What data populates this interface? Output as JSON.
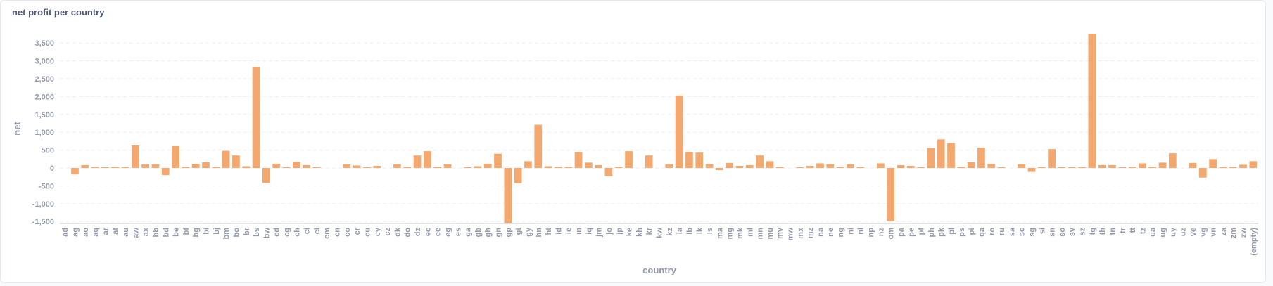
{
  "card": {
    "title": "net profit per country"
  },
  "chart_data": {
    "type": "bar",
    "title": "net profit per country",
    "xlabel": "country",
    "ylabel": "net",
    "ylim": [
      -1550,
      3900
    ],
    "yticks": [
      -1500,
      -1000,
      -500,
      0,
      500,
      1000,
      1500,
      2000,
      2500,
      3000,
      3500
    ],
    "ytick_labels": [
      "-1,500",
      "-1,000",
      "-500",
      "0",
      "500",
      "1,000",
      "1,500",
      "2,000",
      "2,500",
      "3,000",
      "3,500"
    ],
    "grid": true,
    "bar_color": "#f2a86f",
    "categories": [
      "ad",
      "ag",
      "ao",
      "aq",
      "ar",
      "at",
      "au",
      "aw",
      "ax",
      "bb",
      "bd",
      "be",
      "bf",
      "bg",
      "bi",
      "bj",
      "bm",
      "bo",
      "br",
      "bs",
      "bw",
      "cd",
      "cg",
      "ch",
      "ci",
      "cl",
      "cm",
      "cn",
      "co",
      "cr",
      "cu",
      "cy",
      "cz",
      "dk",
      "do",
      "dz",
      "ec",
      "ee",
      "eg",
      "es",
      "ga",
      "gb",
      "gh",
      "gn",
      "gp",
      "gt",
      "gy",
      "hn",
      "ht",
      "id",
      "ie",
      "in",
      "iq",
      "jm",
      "jo",
      "jp",
      "ke",
      "kh",
      "kr",
      "kw",
      "kz",
      "la",
      "lb",
      "lk",
      "ls",
      "ma",
      "mg",
      "mk",
      "ml",
      "mn",
      "mu",
      "mv",
      "mw",
      "mx",
      "mz",
      "na",
      "ne",
      "ng",
      "ni",
      "nl",
      "np",
      "nz",
      "om",
      "pa",
      "pe",
      "pf",
      "ph",
      "pk",
      "pl",
      "ps",
      "pt",
      "qa",
      "ro",
      "ru",
      "sa",
      "sc",
      "sg",
      "si",
      "sn",
      "so",
      "sv",
      "sz",
      "tg",
      "th",
      "tn",
      "tr",
      "tt",
      "tz",
      "ua",
      "ug",
      "uy",
      "uz",
      "ve",
      "vg",
      "vn",
      "za",
      "zm",
      "zw",
      "(empty)"
    ],
    "values": [
      0,
      -180,
      80,
      30,
      20,
      30,
      30,
      630,
      100,
      100,
      -200,
      610,
      30,
      110,
      160,
      30,
      480,
      350,
      50,
      2830,
      -420,
      120,
      20,
      170,
      80,
      20,
      0,
      0,
      100,
      70,
      20,
      60,
      0,
      100,
      30,
      350,
      470,
      30,
      100,
      0,
      20,
      50,
      120,
      400,
      -1580,
      -430,
      190,
      1210,
      50,
      30,
      30,
      450,
      150,
      80,
      -230,
      30,
      470,
      0,
      350,
      0,
      100,
      2030,
      450,
      430,
      110,
      -60,
      140,
      60,
      80,
      350,
      190,
      30,
      0,
      20,
      60,
      130,
      100,
      30,
      100,
      30,
      0,
      130,
      -1490,
      80,
      60,
      20,
      560,
      800,
      700,
      30,
      160,
      570,
      110,
      20,
      0,
      100,
      -110,
      30,
      530,
      20,
      20,
      30,
      3760,
      80,
      80,
      20,
      30,
      130,
      30,
      150,
      410,
      0,
      140,
      -270,
      250,
      30,
      30,
      90,
      190
    ]
  }
}
